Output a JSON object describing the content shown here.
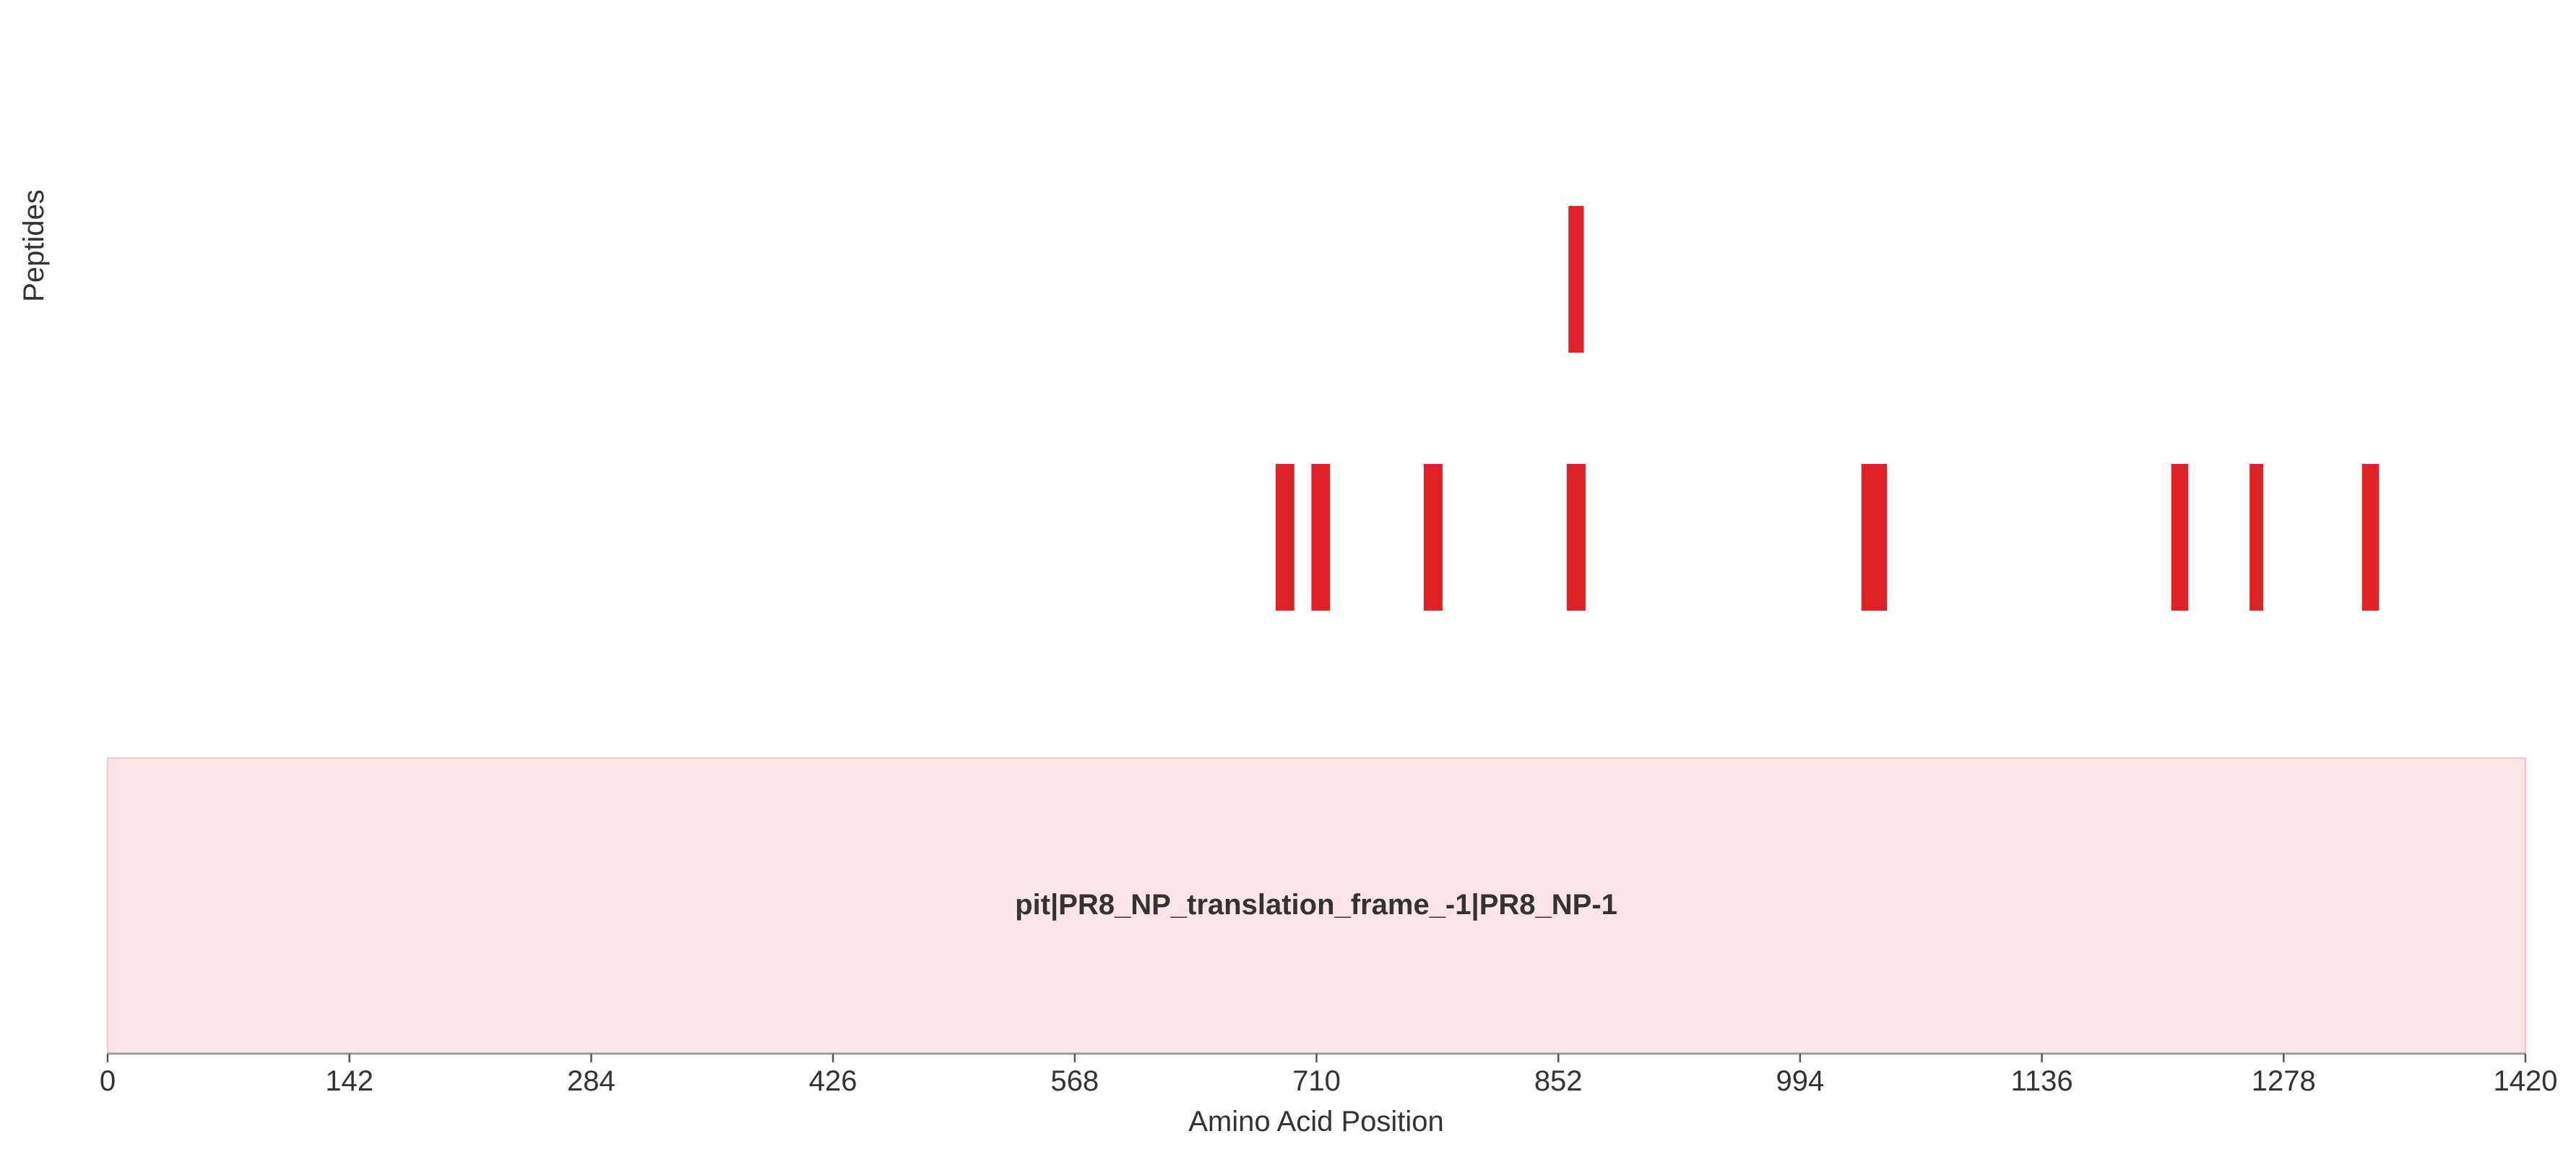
{
  "chart_data": {
    "type": "bar",
    "xlabel": "Amino Acid Position",
    "ylabel": "Peptides",
    "xlim": [
      0,
      1420
    ],
    "x_ticks": [
      0,
      142,
      284,
      426,
      568,
      710,
      852,
      994,
      1136,
      1278,
      1420
    ],
    "grid": false,
    "protein": {
      "label": "pit|PR8_NP_translation_frame_-1|PR8_NP-1",
      "start": 0,
      "end": 1420,
      "fill_color": "#fde4e6",
      "edge_color": "#f4c7cc"
    },
    "peptide_color": "#de2226",
    "peptide_rows": [
      {
        "row": 1,
        "peptides": [
          {
            "start": 858,
            "end": 867
          }
        ]
      },
      {
        "row": 2,
        "peptides": [
          {
            "start": 686,
            "end": 697
          },
          {
            "start": 707,
            "end": 718
          },
          {
            "start": 773,
            "end": 784
          },
          {
            "start": 857,
            "end": 868
          },
          {
            "start": 1030,
            "end": 1045
          },
          {
            "start": 1212,
            "end": 1222
          },
          {
            "start": 1258,
            "end": 1266
          },
          {
            "start": 1324,
            "end": 1334
          }
        ]
      }
    ]
  }
}
